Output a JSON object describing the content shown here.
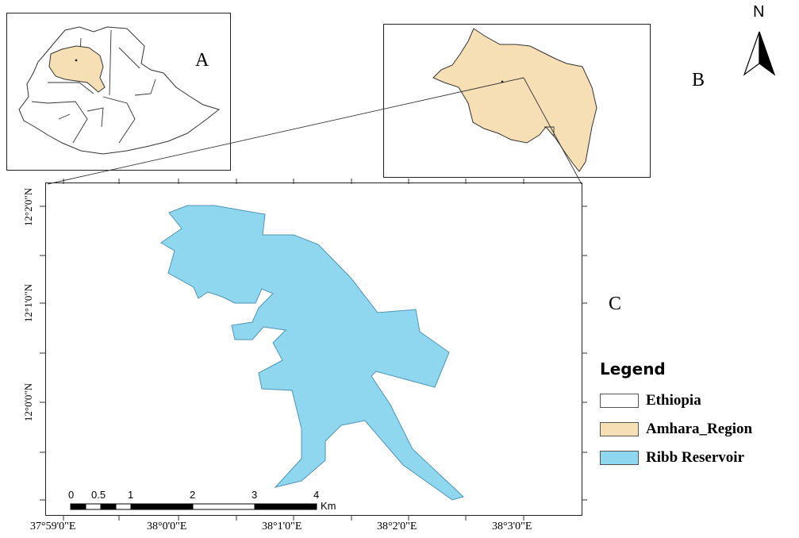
{
  "panels": {
    "a": "A",
    "b": "B",
    "c": "C"
  },
  "north_arrow": {
    "letter": "N",
    "icon": "north-arrow-icon"
  },
  "legend": {
    "title": "Legend",
    "items": [
      {
        "label": "Ethiopia",
        "color": "#ffffff"
      },
      {
        "label": "Amhara_Region",
        "color": "#f7dfb5"
      },
      {
        "label": "Ribb Reservoir",
        "color": "#8fd6ef"
      }
    ]
  },
  "longitude_ticks": [
    "37°59'0\"E",
    "38°0'0\"E",
    "38°1'0\"E",
    "38°2'0\"E",
    "38°3'0\"E"
  ],
  "latitude_ticks": [
    "12°2'0\"N",
    "12°1'0\"N",
    "12°0'0\"N"
  ],
  "scale_bar": {
    "labels": [
      "0",
      "0.5",
      "1",
      "2",
      "3",
      "4"
    ],
    "unit": "Km"
  },
  "colors": {
    "reservoir": "#8fd6ef",
    "reservoir_outline": "#4e95b8",
    "amhara": "#f7dfb5",
    "outline": "#333333"
  }
}
